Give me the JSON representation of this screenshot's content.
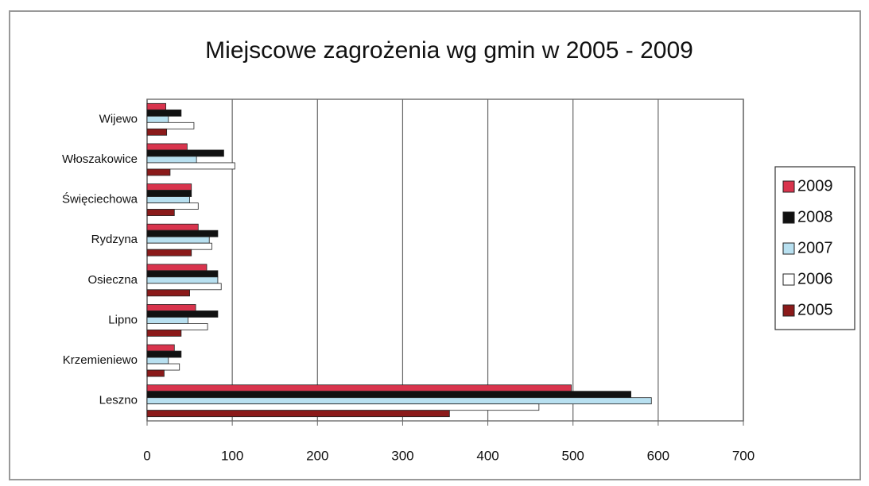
{
  "chart_data": {
    "type": "hbar",
    "title": "Miejscowe zagrożenia wg gmin w 2005 - 2009",
    "categories": [
      "Wijewo",
      "Włoszakowice",
      "Święciechowa",
      "Rydzyna",
      "Osieczna",
      "Lipno",
      "Krzemieniewo",
      "Leszno"
    ],
    "series": [
      {
        "name": "2009",
        "color": "#d9344d",
        "values": [
          22,
          47,
          52,
          60,
          70,
          57,
          32,
          498
        ]
      },
      {
        "name": "2008",
        "color": "#111111",
        "values": [
          40,
          90,
          52,
          83,
          83,
          83,
          40,
          568
        ]
      },
      {
        "name": "2007",
        "color": "#b8e0f0",
        "values": [
          25,
          58,
          50,
          73,
          83,
          48,
          25,
          592
        ]
      },
      {
        "name": "2006",
        "color": "#ffffff",
        "values": [
          55,
          103,
          60,
          76,
          87,
          71,
          38,
          460
        ]
      },
      {
        "name": "2005",
        "color": "#8b1a1a",
        "values": [
          23,
          27,
          32,
          52,
          50,
          40,
          20,
          355
        ]
      }
    ],
    "xlim": [
      0,
      700
    ],
    "xticks": [
      0,
      100,
      200,
      300,
      400,
      500,
      600,
      700
    ],
    "grid": true,
    "legend": "right"
  }
}
